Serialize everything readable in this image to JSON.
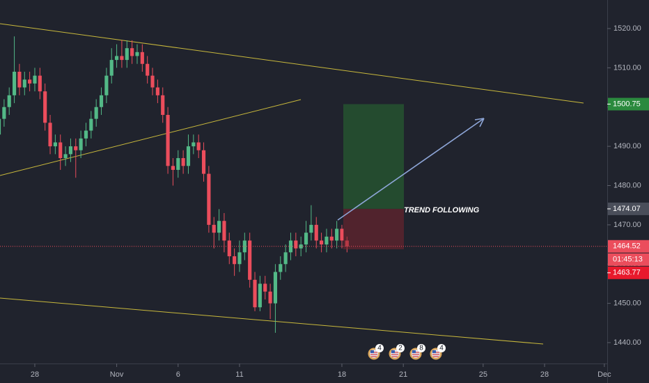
{
  "chart_data": {
    "type": "candlestick",
    "x": [
      -1.75,
      -1.5,
      -1.25,
      -1.0,
      -0.75,
      -0.5,
      -0.25,
      0,
      0.25,
      0.5,
      0.75,
      1.0,
      1.25,
      1.5,
      1.75,
      2.0,
      2.25,
      2.5,
      2.75,
      3.0,
      3.25,
      3.5,
      3.75,
      4.0,
      4.25,
      4.5,
      4.75,
      5.0,
      5.25,
      5.5,
      5.75,
      6.0,
      6.25,
      6.5,
      6.75,
      7.0,
      7.25,
      7.5,
      7.75,
      8.0,
      8.25,
      8.5,
      8.75,
      9.0,
      9.25,
      9.5,
      9.75,
      10.0,
      10.25,
      10.5,
      10.75,
      11.0,
      11.25,
      11.5,
      11.75,
      12.0,
      12.25,
      12.5,
      12.75,
      13.0,
      13.25,
      13.5,
      13.75,
      14.0,
      14.25,
      14.5,
      14.75,
      15.0,
      15.25
    ],
    "open": [
      1493,
      1497,
      1500,
      1503,
      1509,
      1505,
      1507,
      1506,
      1508,
      1504,
      1496,
      1490,
      1491,
      1487,
      1488,
      1490,
      1489,
      1492,
      1494,
      1497,
      1500,
      1503,
      1508,
      1512,
      1513,
      1512,
      1515,
      1513,
      1514,
      1511,
      1508,
      1505,
      1503,
      1498,
      1485,
      1484,
      1487,
      1485,
      1490,
      1491,
      1489,
      1483,
      1470,
      1468,
      1471,
      1466,
      1462,
      1460,
      1463,
      1466,
      1456,
      1449,
      1455,
      1453,
      1450,
      1458,
      1460,
      1463,
      1466,
      1464,
      1465,
      1468,
      1470,
      1466,
      1465,
      1467,
      1466,
      1469,
      1466
    ],
    "high": [
      1499,
      1502,
      1505,
      1518,
      1511,
      1509,
      1509,
      1510,
      1510,
      1506,
      1498,
      1493,
      1493,
      1490,
      1492,
      1492,
      1494,
      1496,
      1499,
      1502,
      1505,
      1510,
      1515,
      1516,
      1517,
      1517,
      1517,
      1516,
      1516,
      1513,
      1510,
      1507,
      1505,
      1500,
      1487,
      1489,
      1489,
      1493,
      1493,
      1493,
      1491,
      1485,
      1472,
      1474,
      1473,
      1468,
      1464,
      1466,
      1468,
      1468,
      1458,
      1457,
      1457,
      1455,
      1460,
      1462,
      1465,
      1468,
      1468,
      1467,
      1471,
      1475,
      1472,
      1468,
      1469,
      1469,
      1471,
      1470,
      1467
    ],
    "low": [
      1491,
      1495,
      1498,
      1501,
      1503,
      1503,
      1504,
      1504,
      1502,
      1494,
      1488,
      1488,
      1484,
      1485,
      1486,
      1482,
      1487,
      1490,
      1492,
      1495,
      1498,
      1501,
      1506,
      1510,
      1510,
      1510,
      1511,
      1511,
      1509,
      1506,
      1503,
      1501,
      1496,
      1483,
      1480,
      1482,
      1483,
      1483,
      1488,
      1487,
      1481,
      1468,
      1464,
      1466,
      1463,
      1460,
      1457,
      1458,
      1461,
      1454,
      1448,
      1448,
      1451,
      1446,
      1442.5,
      1456,
      1458,
      1461,
      1462,
      1462,
      1463,
      1466,
      1464,
      1463,
      1463,
      1464,
      1464,
      1464,
      1463
    ],
    "close": [
      1497,
      1500,
      1503,
      1509,
      1505,
      1507,
      1506,
      1508,
      1504,
      1496,
      1490,
      1491,
      1487,
      1488,
      1490,
      1489,
      1492,
      1494,
      1497,
      1500,
      1503,
      1508,
      1512,
      1513,
      1512,
      1515,
      1513,
      1514,
      1511,
      1508,
      1505,
      1503,
      1498,
      1485,
      1484,
      1487,
      1485,
      1490,
      1491,
      1489,
      1483,
      1470,
      1468,
      1471,
      1466,
      1462,
      1460,
      1463,
      1466,
      1456,
      1449,
      1455,
      1453,
      1450,
      1458,
      1460,
      1463,
      1466,
      1464,
      1465,
      1468,
      1470,
      1466,
      1465,
      1467,
      1466,
      1469,
      1466,
      1464.52
    ],
    "up_color": "#53b987",
    "down_color": "#eb4d5c",
    "xlim": [
      -1.7,
      27.96
    ],
    "ylim": [
      1434.68,
      1527.27
    ],
    "yticks": [
      {
        "value": 1440,
        "label": "1440.00"
      },
      {
        "value": 1450,
        "label": "1450.00"
      },
      {
        "value": 1460,
        "label": "1460.00"
      },
      {
        "value": 1470,
        "label": "1470.00"
      },
      {
        "value": 1480,
        "label": "1480.00"
      },
      {
        "value": 1490,
        "label": "1490.00"
      },
      {
        "value": 1500,
        "label": "1500.00"
      },
      {
        "value": 1510,
        "label": "1510.00"
      },
      {
        "value": 1520,
        "label": "1520.00"
      }
    ],
    "xticks": [
      {
        "value": 0,
        "label": "28"
      },
      {
        "value": 4,
        "label": "Nov"
      },
      {
        "value": 7,
        "label": "6"
      },
      {
        "value": 10,
        "label": "11"
      },
      {
        "value": 15,
        "label": "18"
      },
      {
        "value": 18,
        "label": "21"
      },
      {
        "value": 21.9,
        "label": "25"
      },
      {
        "value": 24.9,
        "label": "28"
      },
      {
        "value": 27.82,
        "label": "Dec"
      }
    ],
    "grid": false,
    "annotation": "TREND FOLLOWING",
    "target": 1500.75,
    "entry": 1474.07,
    "stop": 1463.77,
    "last_price": 1464.52,
    "countdown": "01:45:13",
    "events": [
      4,
      2,
      8,
      4
    ]
  }
}
